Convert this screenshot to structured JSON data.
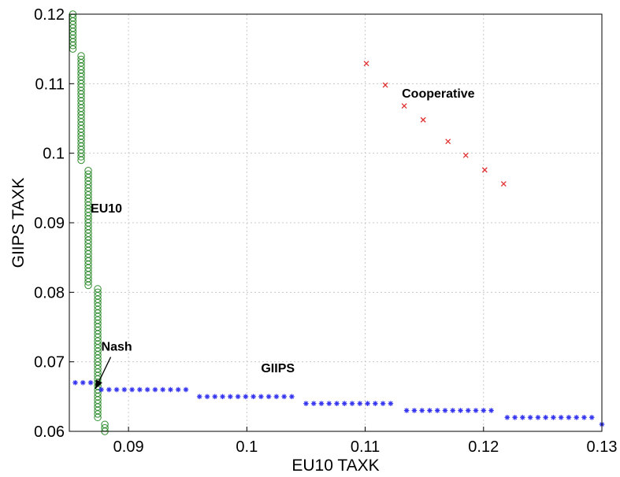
{
  "chart_data": {
    "type": "scatter",
    "title": "",
    "xlabel": "EU10 TAXK",
    "ylabel": "GIIPS TAXK",
    "xlim": [
      0.085,
      0.13
    ],
    "ylim": [
      0.06,
      0.12
    ],
    "xticks": [
      0.09,
      0.1,
      0.11,
      0.12,
      0.13
    ],
    "xtick_labels": [
      "0.09",
      "0.1",
      "0.11",
      "0.12",
      "0.13"
    ],
    "yticks": [
      0.06,
      0.07,
      0.08,
      0.09,
      0.1,
      0.11,
      0.12
    ],
    "ytick_labels": [
      "0.06",
      "0.07",
      "0.08",
      "0.09",
      "0.1",
      "0.11",
      "0.12"
    ],
    "grid": true,
    "colors": {
      "eu10": "#2e8b2e",
      "giips": "#3333ee",
      "cooperative": "#e03030"
    },
    "series": [
      {
        "marker": "circle",
        "segments": [
          {
            "x": 0.0853,
            "y_from": 0.115,
            "y_to": 0.12,
            "step": 0.0005
          },
          {
            "x": 0.086,
            "y_from": 0.099,
            "y_to": 0.114,
            "step": 0.0005
          },
          {
            "x": 0.0866,
            "y_from": 0.081,
            "y_to": 0.0975,
            "step": 0.0005
          },
          {
            "x": 0.0874,
            "y_from": 0.062,
            "y_to": 0.0805,
            "step": 0.0005
          },
          {
            "x": 0.088,
            "y_from": 0.06,
            "y_to": 0.061,
            "step": 0.0005
          }
        ]
      },
      {
        "marker": "star",
        "segments": [
          {
            "y": 0.067,
            "x_from": 0.0855,
            "x_to": 0.087,
            "step": 0.00065
          },
          {
            "y": 0.066,
            "x_from": 0.0877,
            "x_to": 0.095,
            "step": 0.00065
          },
          {
            "y": 0.065,
            "x_from": 0.096,
            "x_to": 0.104,
            "step": 0.00065
          },
          {
            "y": 0.064,
            "x_from": 0.105,
            "x_to": 0.1125,
            "step": 0.00065
          },
          {
            "y": 0.063,
            "x_from": 0.1135,
            "x_to": 0.121,
            "step": 0.00065
          },
          {
            "y": 0.062,
            "x_from": 0.122,
            "x_to": 0.1295,
            "step": 0.00065
          },
          {
            "y": 0.061,
            "x_from": 0.13,
            "x_to": 0.13,
            "step": 0.00065
          }
        ]
      },
      {
        "marker": "x",
        "points": [
          [
            0.1101,
            0.1129
          ],
          [
            0.1117,
            0.1098
          ],
          [
            0.1133,
            0.1068
          ],
          [
            0.1149,
            0.1048
          ],
          [
            0.117,
            0.1017
          ],
          [
            0.1185,
            0.0997
          ],
          [
            0.1201,
            0.0976
          ],
          [
            0.1217,
            0.0956
          ]
        ]
      }
    ],
    "annotations": {
      "cooperative": {
        "text": "Cooperative",
        "x": 0.1131,
        "y": 0.108
      },
      "eu10": {
        "text": "EU10",
        "x": 0.0868,
        "y": 0.0915
      },
      "giips": {
        "text": "GIIPS",
        "x": 0.1012,
        "y": 0.0685
      },
      "nash": {
        "text": "Nash",
        "x": 0.0877,
        "y": 0.0716,
        "arrow_to": [
          0.0872,
          0.0661
        ]
      }
    }
  }
}
